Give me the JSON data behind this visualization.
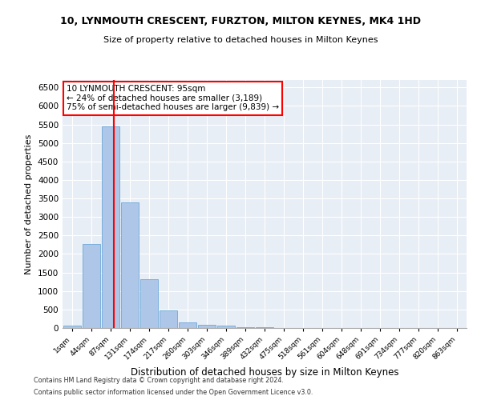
{
  "title1": "10, LYNMOUTH CRESCENT, FURZTON, MILTON KEYNES, MK4 1HD",
  "title2": "Size of property relative to detached houses in Milton Keynes",
  "xlabel": "Distribution of detached houses by size in Milton Keynes",
  "ylabel": "Number of detached properties",
  "categories": [
    "1sqm",
    "44sqm",
    "87sqm",
    "131sqm",
    "174sqm",
    "217sqm",
    "260sqm",
    "303sqm",
    "346sqm",
    "389sqm",
    "432sqm",
    "475sqm",
    "518sqm",
    "561sqm",
    "604sqm",
    "648sqm",
    "691sqm",
    "734sqm",
    "777sqm",
    "820sqm",
    "863sqm"
  ],
  "bar_heights": [
    75,
    2280,
    5450,
    3390,
    1310,
    480,
    160,
    90,
    55,
    30,
    15,
    8,
    5,
    3,
    2,
    1,
    1,
    0,
    0,
    0,
    0
  ],
  "bar_color": "#aec6e8",
  "bar_edge_color": "#5a9fd4",
  "annotation_text": "10 LYNMOUTH CRESCENT: 95sqm\n← 24% of detached houses are smaller (3,189)\n75% of semi-detached houses are larger (9,839) →",
  "annotation_box_color": "white",
  "annotation_box_edge": "red",
  "vline_color": "red",
  "footnote1": "Contains HM Land Registry data © Crown copyright and database right 2024.",
  "footnote2": "Contains public sector information licensed under the Open Government Licence v3.0.",
  "ylim": [
    0,
    6700
  ],
  "yticks": [
    0,
    500,
    1000,
    1500,
    2000,
    2500,
    3000,
    3500,
    4000,
    4500,
    5000,
    5500,
    6000,
    6500
  ],
  "bg_color": "#e8eef5",
  "fig_bg_color": "#ffffff",
  "vline_pos": 2.18
}
